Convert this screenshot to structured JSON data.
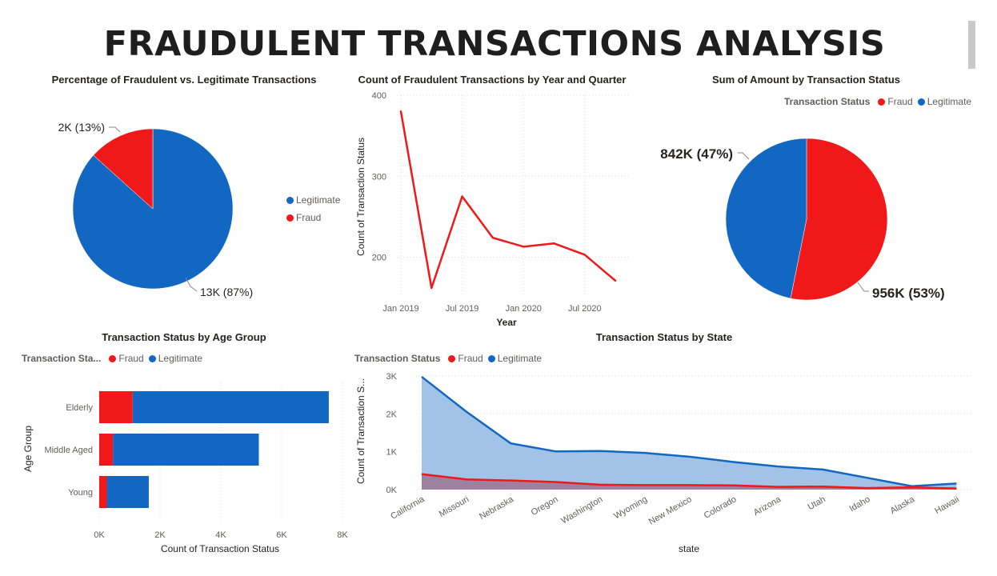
{
  "page": {
    "title": "FRAUDULENT TRANSACTIONS ANALYSIS"
  },
  "colors": {
    "fraud": "#f01818",
    "legitimate": "#1267c2",
    "legit_area": "#9cc0e6",
    "fraud_area": "#9b7a98"
  },
  "legend_title": "Transaction Status",
  "legend_title_truncated": "Transaction Sta...",
  "chart_data": [
    {
      "id": "pie_fraud_pct",
      "type": "pie",
      "title": "Percentage of Fraudulent vs. Legitimate Transactions",
      "legend_placement": "right",
      "slices": [
        {
          "name": "Legitimate",
          "value": 13,
          "label": "13K (87%)"
        },
        {
          "name": "Fraud",
          "value": 2,
          "label": "2K (13%)"
        }
      ]
    },
    {
      "id": "line_year_quarter",
      "type": "line",
      "title": "Count of Fraudulent Transactions by Year and Quarter",
      "xlabel": "Year",
      "ylabel": "Count of Transaction Status",
      "ylim": [
        160,
        400
      ],
      "yticks": [
        "400",
        "300",
        "200"
      ],
      "ytick_values": [
        400,
        300,
        200
      ],
      "xticks": [
        "Jan 2019",
        "Jul 2019",
        "Jan 2020",
        "Jul 2020"
      ],
      "xtick_positions": [
        0,
        2,
        4,
        6
      ],
      "points": [
        380,
        162,
        275,
        224,
        213,
        217,
        203,
        171
      ]
    },
    {
      "id": "pie_amount",
      "type": "pie",
      "title": "Sum of Amount by Transaction Status",
      "legend_placement": "top-right",
      "legend": [
        "Fraud",
        "Legitimate"
      ],
      "slices": [
        {
          "name": "Fraud",
          "value": 956,
          "label": "956K (53%)"
        },
        {
          "name": "Legitimate",
          "value": 842,
          "label": "842K (47%)"
        }
      ]
    },
    {
      "id": "bar_age_group",
      "type": "bar",
      "orientation": "horizontal",
      "stacked": true,
      "title": "Transaction Status by Age Group",
      "xlabel": "Count of Transaction Status",
      "ylabel": "Age Group",
      "legend_placement": "top-left",
      "legend": [
        "Fraud",
        "Legitimate"
      ],
      "categories": [
        "Elderly",
        "Middle Aged",
        "Young"
      ],
      "series": [
        {
          "name": "Fraud",
          "values": [
            1100,
            450,
            250
          ]
        },
        {
          "name": "Legitimate",
          "values": [
            6450,
            4800,
            1380
          ]
        }
      ],
      "xlim": [
        0,
        8000
      ],
      "xticks": [
        "0K",
        "2K",
        "4K",
        "6K",
        "8K"
      ],
      "xtick_values": [
        0,
        2000,
        4000,
        6000,
        8000
      ]
    },
    {
      "id": "area_state",
      "type": "area",
      "title": "Transaction Status by State",
      "xlabel": "state",
      "ylabel": "Count of Transaction S...",
      "legend_placement": "top-left",
      "legend": [
        "Fraud",
        "Legitimate"
      ],
      "categories": [
        "California",
        "Missouri",
        "Nebraska",
        "Oregon",
        "Washington",
        "Wyoming",
        "New Mexico",
        "Colorado",
        "Arizona",
        "Utah",
        "Idaho",
        "Alaska",
        "Hawaii"
      ],
      "series": [
        {
          "name": "Legitimate",
          "values": [
            2980,
            2060,
            1220,
            1010,
            1020,
            970,
            870,
            730,
            610,
            530,
            310,
            90,
            160
          ]
        },
        {
          "name": "Fraud",
          "values": [
            410,
            270,
            240,
            200,
            130,
            120,
            120,
            110,
            70,
            80,
            40,
            60,
            30
          ]
        }
      ],
      "ylim": [
        0,
        3000
      ],
      "yticks": [
        "3K",
        "2K",
        "1K",
        "0K"
      ],
      "ytick_values": [
        3000,
        2000,
        1000,
        0
      ]
    }
  ]
}
